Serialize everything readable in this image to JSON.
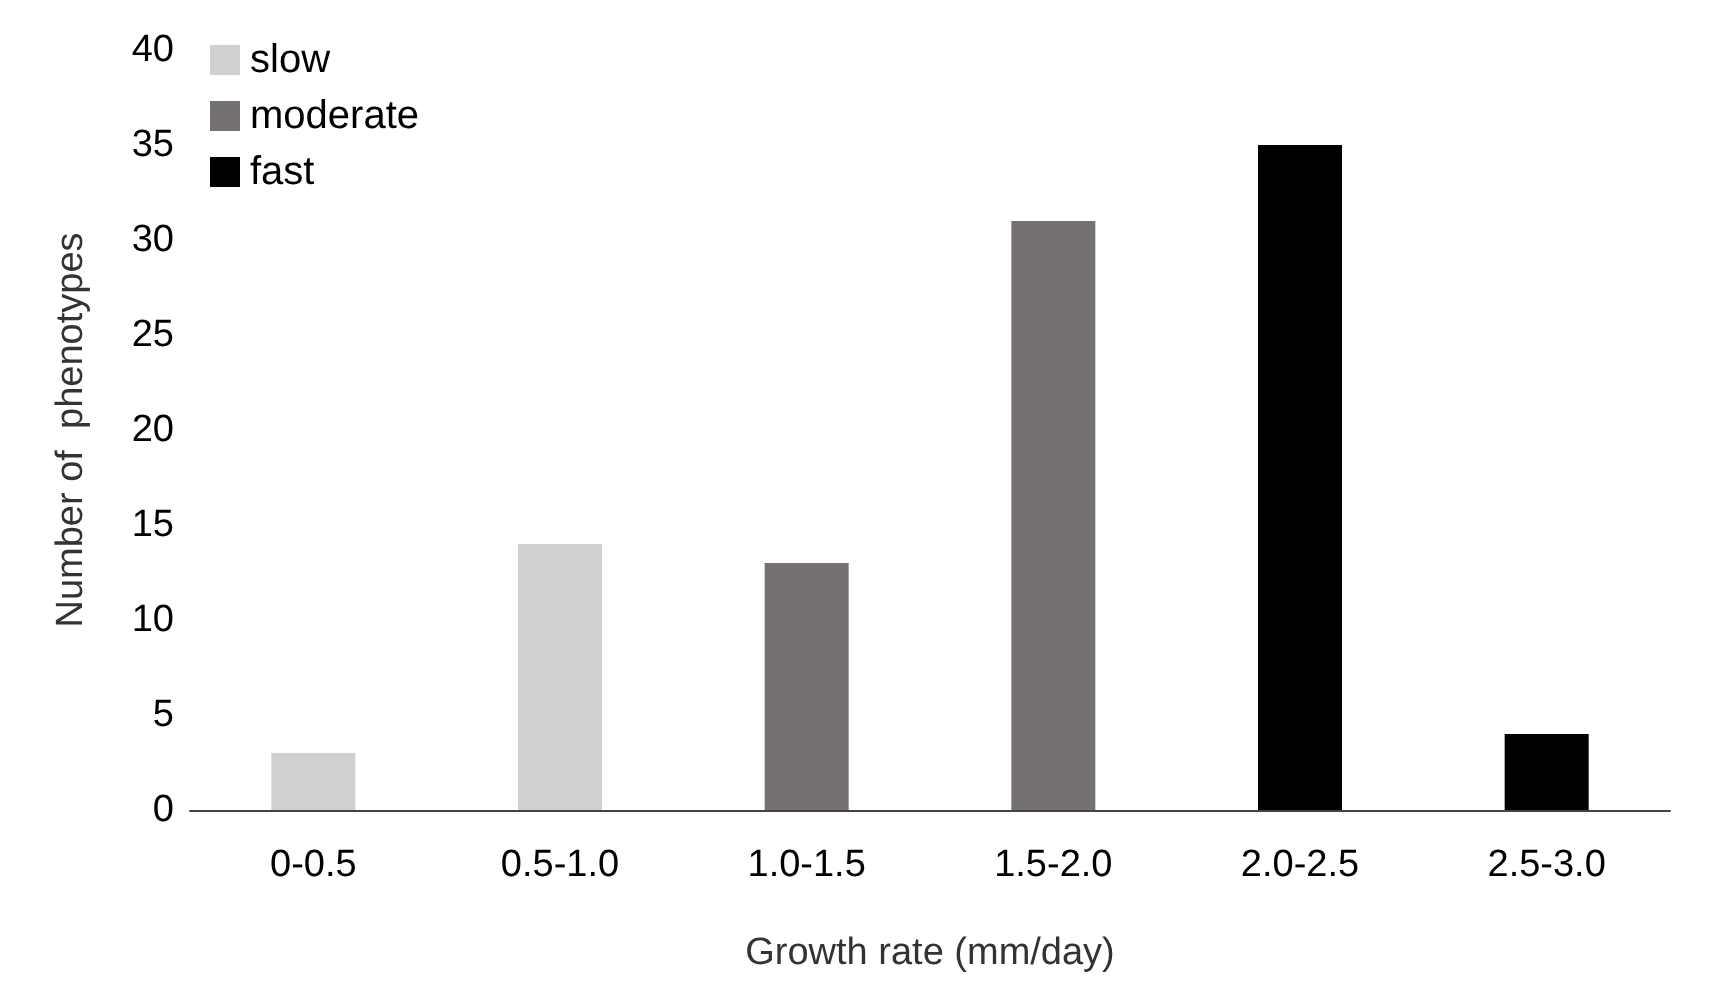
{
  "chart_data": {
    "type": "bar",
    "xlabel": "Growth rate (mm/day)",
    "ylabel": "Number of  phenotypes",
    "categories": [
      "0-0.5",
      "0.5-1.0",
      "1.0-1.5",
      "1.5-2.0",
      "2.0-2.5",
      "2.5-3.0"
    ],
    "series": [
      {
        "name": "slow",
        "color": "#d0d0d0",
        "values": [
          3,
          14,
          null,
          null,
          null,
          null
        ]
      },
      {
        "name": "moderate",
        "color": "#767171",
        "values": [
          null,
          null,
          13,
          31,
          null,
          null
        ]
      },
      {
        "name": "fast",
        "color": "#000000",
        "values": [
          null,
          null,
          null,
          null,
          35,
          4
        ]
      }
    ],
    "ylim": [
      0,
      40
    ],
    "yticks": [
      0,
      5,
      10,
      15,
      20,
      25,
      30,
      35,
      40
    ],
    "grid": false,
    "legend": "top left"
  }
}
